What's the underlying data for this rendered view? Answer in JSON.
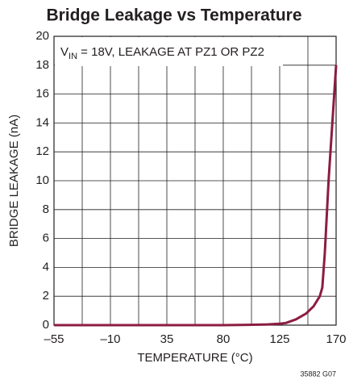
{
  "chart_data": {
    "type": "line",
    "title": "Bridge Leakage vs Temperature",
    "xlabel": "TEMPERATURE (°C)",
    "ylabel": "BRIDGE LEAKAGE (nA)",
    "annotation": {
      "main": "V",
      "sub": "IN",
      "rest": " = 18V, LEAKAGE AT PZ1 OR PZ2"
    },
    "footnote": "35882 G07",
    "x": [
      -55,
      80,
      100,
      115,
      125,
      130,
      138,
      146,
      152,
      157,
      159,
      161,
      164,
      167,
      170
    ],
    "series": [
      {
        "name": "Bridge leakage",
        "color": "#8c1d40",
        "values": [
          0,
          0,
          0.02,
          0.05,
          0.1,
          0.15,
          0.4,
          0.8,
          1.3,
          2,
          2.6,
          5,
          10,
          14,
          18
        ]
      }
    ],
    "xlim": [
      -55,
      170
    ],
    "xticks": [
      {
        "value": -55,
        "label": "–55"
      },
      {
        "value": -10,
        "label": "–10"
      },
      35,
      80,
      125,
      170
    ],
    "xminor": [
      -32.5,
      12.5,
      57.5,
      102.5,
      147.5
    ],
    "ylim": [
      0,
      20
    ],
    "yticks": [
      0,
      2,
      4,
      6,
      8,
      10,
      12,
      14,
      16,
      18,
      20
    ],
    "grid": true
  }
}
